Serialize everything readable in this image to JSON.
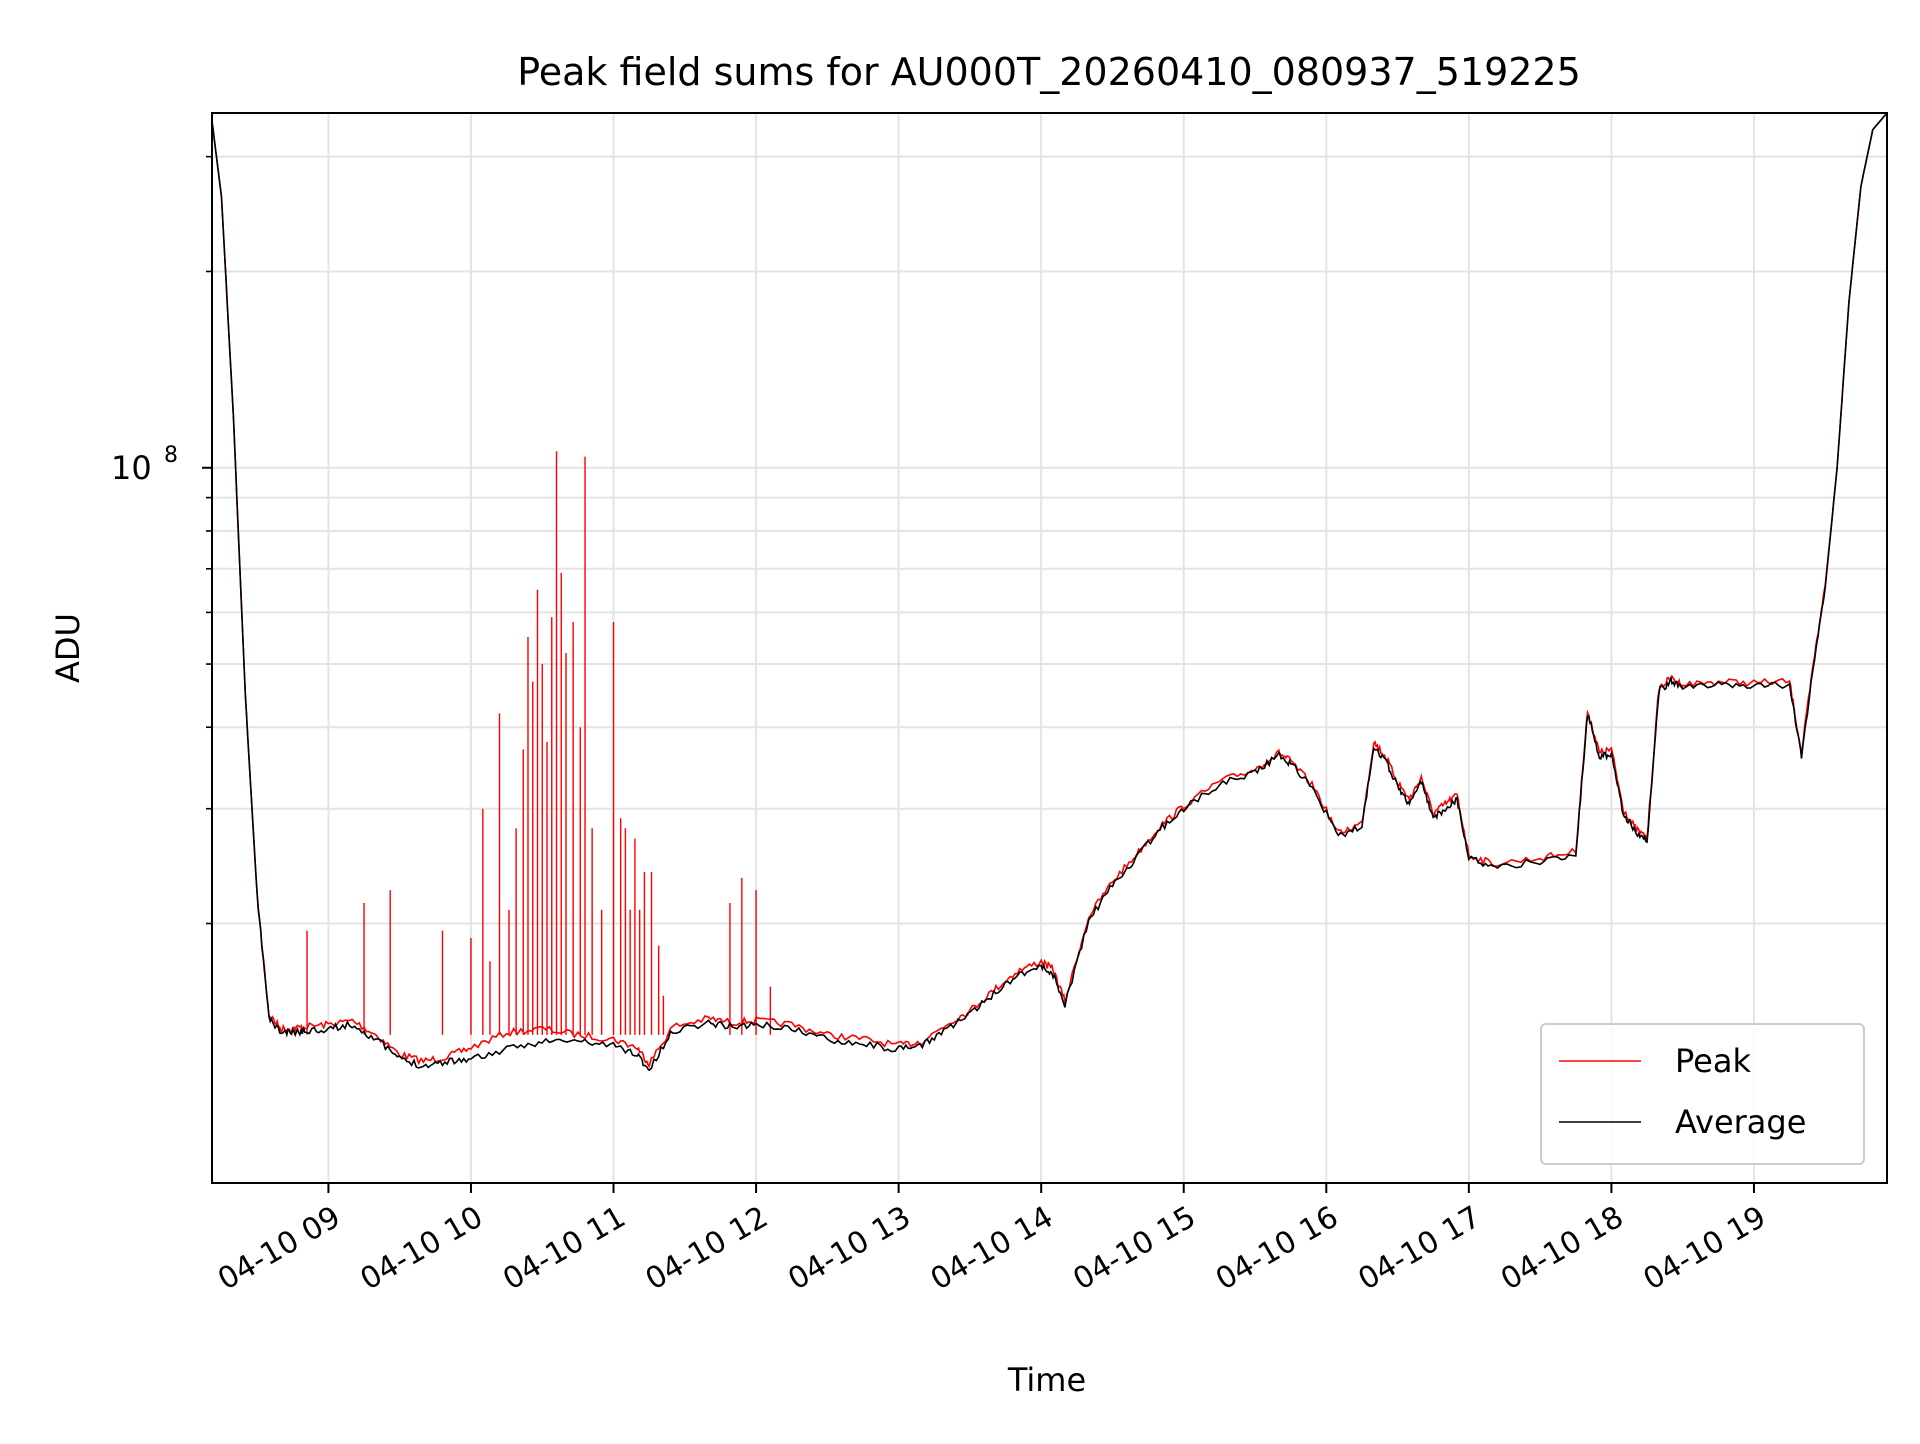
{
  "chart_data": {
    "type": "line",
    "title": "Peak field sums for AU000T_20260410_080937_519225",
    "xlabel": "Time",
    "ylabel": "ADU",
    "y_scale": "log",
    "ylim": [
      8000000,
      350000000
    ],
    "xlim": [
      "2026-04-10 08:11",
      "2026-04-10 19:56"
    ],
    "grid": true,
    "legend_position": "lower-right",
    "x_ticks": [
      {
        "value": "2026-04-10 09:00",
        "label": "04-10 09"
      },
      {
        "value": "2026-04-10 10:00",
        "label": "04-10 10"
      },
      {
        "value": "2026-04-10 11:00",
        "label": "04-10 11"
      },
      {
        "value": "2026-04-10 12:00",
        "label": "04-10 12"
      },
      {
        "value": "2026-04-10 13:00",
        "label": "04-10 13"
      },
      {
        "value": "2026-04-10 14:00",
        "label": "04-10 14"
      },
      {
        "value": "2026-04-10 15:00",
        "label": "04-10 15"
      },
      {
        "value": "2026-04-10 16:00",
        "label": "04-10 16"
      },
      {
        "value": "2026-04-10 17:00",
        "label": "04-10 17"
      },
      {
        "value": "2026-04-10 18:00",
        "label": "04-10 18"
      },
      {
        "value": "2026-04-10 19:00",
        "label": "04-10 19"
      }
    ],
    "y_major_tick": {
      "value": 100000000,
      "label_base": "10",
      "label_exp": "8"
    },
    "y_minor_ticks": [
      20000000,
      30000000,
      40000000,
      50000000,
      60000000,
      70000000,
      80000000,
      90000000,
      200000000,
      300000000
    ],
    "series": [
      {
        "name": "Peak",
        "color": "#ff0000",
        "x": [
          "2026-04-10 08:11",
          "2026-04-10 08:15",
          "2026-04-10 08:20",
          "2026-04-10 08:25",
          "2026-04-10 08:30",
          "2026-04-10 08:35",
          "2026-04-10 08:40",
          "2026-04-10 08:45",
          "2026-04-10 08:50",
          "2026-04-10 09:00",
          "2026-04-10 09:10",
          "2026-04-10 09:20",
          "2026-04-10 09:30",
          "2026-04-10 09:40",
          "2026-04-10 09:50",
          "2026-04-10 10:00",
          "2026-04-10 10:15",
          "2026-04-10 10:30",
          "2026-04-10 10:45",
          "2026-04-10 11:00",
          "2026-04-10 11:10",
          "2026-04-10 11:15",
          "2026-04-10 11:25",
          "2026-04-10 11:40",
          "2026-04-10 11:50",
          "2026-04-10 12:00",
          "2026-04-10 12:15",
          "2026-04-10 12:30",
          "2026-04-10 12:45",
          "2026-04-10 13:00",
          "2026-04-10 13:10",
          "2026-04-10 13:20",
          "2026-04-10 13:30",
          "2026-04-10 13:40",
          "2026-04-10 13:50",
          "2026-04-10 14:00",
          "2026-04-10 14:05",
          "2026-04-10 14:10",
          "2026-04-10 14:20",
          "2026-04-10 14:30",
          "2026-04-10 14:40",
          "2026-04-10 14:50",
          "2026-04-10 15:00",
          "2026-04-10 15:15",
          "2026-04-10 15:30",
          "2026-04-10 15:40",
          "2026-04-10 15:45",
          "2026-04-10 15:55",
          "2026-04-10 16:05",
          "2026-04-10 16:15",
          "2026-04-10 16:20",
          "2026-04-10 16:25",
          "2026-04-10 16:30",
          "2026-04-10 16:35",
          "2026-04-10 16:40",
          "2026-04-10 16:45",
          "2026-04-10 16:50",
          "2026-04-10 16:55",
          "2026-04-10 17:00",
          "2026-04-10 17:10",
          "2026-04-10 17:30",
          "2026-04-10 17:45",
          "2026-04-10 17:50",
          "2026-04-10 17:55",
          "2026-04-10 18:00",
          "2026-04-10 18:05",
          "2026-04-10 18:10",
          "2026-04-10 18:15",
          "2026-04-10 18:20",
          "2026-04-10 18:25",
          "2026-04-10 18:30",
          "2026-04-10 18:45",
          "2026-04-10 19:00",
          "2026-04-10 19:15",
          "2026-04-10 19:20",
          "2026-04-10 19:25",
          "2026-04-10 19:30",
          "2026-04-10 19:35",
          "2026-04-10 19:40",
          "2026-04-10 19:45",
          "2026-04-10 19:50",
          "2026-04-10 19:56"
        ],
        "values": [
          340000000,
          260000000,
          120000000,
          45000000,
          22000000,
          14500000,
          13800000,
          13800000,
          13900000,
          14000000,
          14200000,
          13500000,
          12600000,
          12300000,
          12500000,
          12900000,
          13600000,
          13800000,
          13500000,
          13300000,
          12900000,
          12200000,
          13900000,
          14300000,
          14100000,
          14200000,
          14000000,
          13500000,
          13300000,
          13000000,
          13200000,
          14000000,
          14700000,
          15800000,
          16900000,
          17500000,
          17000000,
          15200000,
          20500000,
          23200000,
          25500000,
          28200000,
          30300000,
          33000000,
          34500000,
          36500000,
          35500000,
          32300000,
          27500000,
          28500000,
          38000000,
          36000000,
          33000000,
          31000000,
          33500000,
          29500000,
          30500000,
          31500000,
          25500000,
          24700000,
          25200000,
          25800000,
          42500000,
          36500000,
          37000000,
          30000000,
          28000000,
          27000000,
          46000000,
          47500000,
          46500000,
          47000000,
          46800000,
          47000000,
          36500000,
          50000000,
          66000000,
          100000000,
          180000000,
          270000000,
          330000000,
          350000000
        ]
      },
      {
        "name": "Average",
        "color": "#000000",
        "x": [
          "2026-04-10 08:11",
          "2026-04-10 08:15",
          "2026-04-10 08:20",
          "2026-04-10 08:25",
          "2026-04-10 08:30",
          "2026-04-10 08:35",
          "2026-04-10 08:40",
          "2026-04-10 08:45",
          "2026-04-10 08:50",
          "2026-04-10 09:00",
          "2026-04-10 09:10",
          "2026-04-10 09:20",
          "2026-04-10 09:30",
          "2026-04-10 09:40",
          "2026-04-10 09:50",
          "2026-04-10 10:00",
          "2026-04-10 10:15",
          "2026-04-10 10:30",
          "2026-04-10 10:45",
          "2026-04-10 11:00",
          "2026-04-10 11:10",
          "2026-04-10 11:15",
          "2026-04-10 11:25",
          "2026-04-10 11:40",
          "2026-04-10 11:50",
          "2026-04-10 12:00",
          "2026-04-10 12:15",
          "2026-04-10 12:30",
          "2026-04-10 12:45",
          "2026-04-10 13:00",
          "2026-04-10 13:10",
          "2026-04-10 13:20",
          "2026-04-10 13:30",
          "2026-04-10 13:40",
          "2026-04-10 13:50",
          "2026-04-10 14:00",
          "2026-04-10 14:05",
          "2026-04-10 14:10",
          "2026-04-10 14:20",
          "2026-04-10 14:30",
          "2026-04-10 14:40",
          "2026-04-10 14:50",
          "2026-04-10 15:00",
          "2026-04-10 15:15",
          "2026-04-10 15:30",
          "2026-04-10 15:40",
          "2026-04-10 15:45",
          "2026-04-10 15:55",
          "2026-04-10 16:05",
          "2026-04-10 16:15",
          "2026-04-10 16:20",
          "2026-04-10 16:25",
          "2026-04-10 16:30",
          "2026-04-10 16:35",
          "2026-04-10 16:40",
          "2026-04-10 16:45",
          "2026-04-10 16:50",
          "2026-04-10 16:55",
          "2026-04-10 17:00",
          "2026-04-10 17:10",
          "2026-04-10 17:30",
          "2026-04-10 17:45",
          "2026-04-10 17:50",
          "2026-04-10 17:55",
          "2026-04-10 18:00",
          "2026-04-10 18:05",
          "2026-04-10 18:10",
          "2026-04-10 18:15",
          "2026-04-10 18:20",
          "2026-04-10 18:25",
          "2026-04-10 18:30",
          "2026-04-10 18:45",
          "2026-04-10 19:00",
          "2026-04-10 19:15",
          "2026-04-10 19:20",
          "2026-04-10 19:25",
          "2026-04-10 19:30",
          "2026-04-10 19:35",
          "2026-04-10 19:40",
          "2026-04-10 19:45",
          "2026-04-10 19:50",
          "2026-04-10 19:56"
        ],
        "values": [
          340000000,
          260000000,
          120000000,
          45000000,
          22000000,
          14300000,
          13600000,
          13600000,
          13700000,
          13800000,
          14000000,
          13300000,
          12400000,
          12100000,
          12300000,
          12400000,
          12800000,
          13200000,
          13200000,
          13000000,
          12600000,
          11900000,
          13700000,
          14100000,
          13900000,
          14000000,
          13800000,
          13300000,
          13100000,
          12800000,
          13000000,
          13800000,
          14500000,
          15600000,
          16700000,
          17200000,
          16700000,
          15000000,
          20200000,
          22900000,
          25200000,
          27900000,
          30000000,
          32700000,
          34200000,
          36200000,
          35200000,
          32000000,
          27200000,
          28200000,
          37500000,
          35500000,
          32500000,
          30500000,
          33000000,
          29000000,
          30000000,
          31000000,
          25200000,
          24400000,
          24900000,
          25500000,
          42000000,
          36000000,
          36500000,
          29500000,
          27700000,
          26700000,
          45500000,
          47000000,
          46000000,
          46500000,
          46300000,
          46500000,
          36000000,
          49500000,
          65500000,
          100000000,
          180000000,
          270000000,
          330000000,
          350000000
        ]
      }
    ],
    "peak_spikes": [
      {
        "x": "2026-04-10 08:51",
        "value": 19500000
      },
      {
        "x": "2026-04-10 09:15",
        "value": 21500000
      },
      {
        "x": "2026-04-10 09:26",
        "value": 22500000
      },
      {
        "x": "2026-04-10 09:48",
        "value": 19500000
      },
      {
        "x": "2026-04-10 10:00",
        "value": 19000000
      },
      {
        "x": "2026-04-10 10:05",
        "value": 30000000
      },
      {
        "x": "2026-04-10 10:08",
        "value": 17500000
      },
      {
        "x": "2026-04-10 10:12",
        "value": 42000000
      },
      {
        "x": "2026-04-10 10:16",
        "value": 21000000
      },
      {
        "x": "2026-04-10 10:19",
        "value": 28000000
      },
      {
        "x": "2026-04-10 10:22",
        "value": 37000000
      },
      {
        "x": "2026-04-10 10:24",
        "value": 55000000
      },
      {
        "x": "2026-04-10 10:26",
        "value": 47000000
      },
      {
        "x": "2026-04-10 10:28",
        "value": 65000000
      },
      {
        "x": "2026-04-10 10:30",
        "value": 50000000
      },
      {
        "x": "2026-04-10 10:32",
        "value": 38000000
      },
      {
        "x": "2026-04-10 10:34",
        "value": 59000000
      },
      {
        "x": "2026-04-10 10:36",
        "value": 106000000
      },
      {
        "x": "2026-04-10 10:38",
        "value": 69000000
      },
      {
        "x": "2026-04-10 10:40",
        "value": 52000000
      },
      {
        "x": "2026-04-10 10:43",
        "value": 58000000
      },
      {
        "x": "2026-04-10 10:46",
        "value": 40000000
      },
      {
        "x": "2026-04-10 10:48",
        "value": 104000000
      },
      {
        "x": "2026-04-10 10:51",
        "value": 28000000
      },
      {
        "x": "2026-04-10 10:55",
        "value": 21000000
      },
      {
        "x": "2026-04-10 11:00",
        "value": 58000000
      },
      {
        "x": "2026-04-10 11:03",
        "value": 29000000
      },
      {
        "x": "2026-04-10 11:05",
        "value": 28000000
      },
      {
        "x": "2026-04-10 11:07",
        "value": 21000000
      },
      {
        "x": "2026-04-10 11:09",
        "value": 27000000
      },
      {
        "x": "2026-04-10 11:11",
        "value": 21000000
      },
      {
        "x": "2026-04-10 11:13",
        "value": 24000000
      },
      {
        "x": "2026-04-10 11:16",
        "value": 24000000
      },
      {
        "x": "2026-04-10 11:19",
        "value": 18500000
      },
      {
        "x": "2026-04-10 11:21",
        "value": 15500000
      },
      {
        "x": "2026-04-10 11:49",
        "value": 21500000
      },
      {
        "x": "2026-04-10 11:54",
        "value": 23500000
      },
      {
        "x": "2026-04-10 12:00",
        "value": 22500000
      },
      {
        "x": "2026-04-10 12:06",
        "value": 16000000
      }
    ],
    "legend": [
      "Peak",
      "Average"
    ]
  }
}
